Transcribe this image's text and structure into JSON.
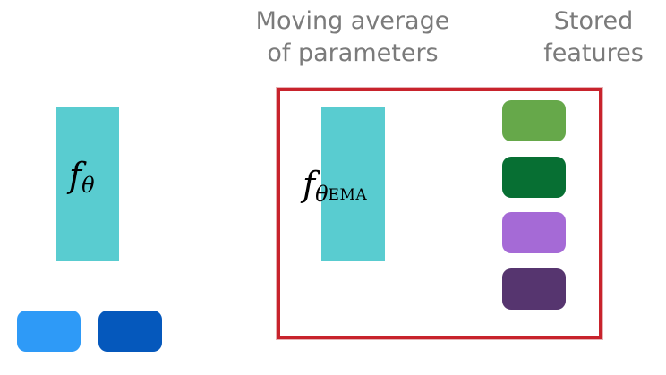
{
  "captions": {
    "moving_average": [
      "Moving average",
      "of parameters"
    ],
    "stored_features": [
      "Stored",
      "features"
    ]
  },
  "encoders": {
    "online": {
      "symbol": "f",
      "subscript": "θ",
      "color": "#59ccd0"
    },
    "ema": {
      "symbol": "f",
      "subscript": "θ",
      "subsubscript": "EMA",
      "color": "#59ccd0"
    }
  },
  "memory_box": {
    "border_color": "#c8232c"
  },
  "stored_features": [
    {
      "name": "stored-feature-light-green",
      "color": "#66a84a"
    },
    {
      "name": "stored-feature-dark-green",
      "color": "#076f33"
    },
    {
      "name": "stored-feature-light-purple",
      "color": "#a56ad6"
    },
    {
      "name": "stored-feature-dark-purple",
      "color": "#56356f"
    }
  ],
  "batch_features": [
    {
      "name": "batch-feature-light-blue",
      "color": "#2e9af7"
    },
    {
      "name": "batch-feature-dark-blue",
      "color": "#0558bc"
    }
  ]
}
